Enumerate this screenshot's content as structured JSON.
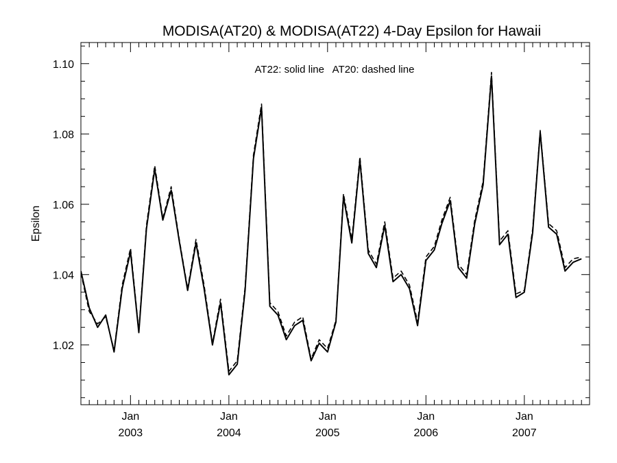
{
  "chart_data": {
    "type": "line",
    "title": "MODISA(AT20) & MODISA(AT22) 4-Day Epsilon for Hawaii",
    "annotation": "AT22: solid line   AT20: dashed line",
    "xlabel": "",
    "ylabel": "Epsilon",
    "xlim": [
      "2002-07-01",
      "2007-08-31"
    ],
    "ylim": [
      1.003,
      1.106
    ],
    "y_ticks": [
      1.02,
      1.04,
      1.06,
      1.08,
      1.1
    ],
    "y_tick_labels": [
      "1.02",
      "1.04",
      "1.06",
      "1.08",
      "1.10"
    ],
    "x_major_ticks": [
      {
        "date": "2003-01-01",
        "month": "Jan",
        "year": "2003"
      },
      {
        "date": "2004-01-01",
        "month": "Jan",
        "year": "2004"
      },
      {
        "date": "2005-01-01",
        "month": "Jan",
        "year": "2005"
      },
      {
        "date": "2006-01-01",
        "month": "Jan",
        "year": "2006"
      },
      {
        "date": "2007-01-01",
        "month": "Jan",
        "year": "2007"
      }
    ],
    "grid": false,
    "x": [
      "2002-07-01",
      "2002-08-01",
      "2002-09-01",
      "2002-10-01",
      "2002-11-01",
      "2002-12-01",
      "2003-01-01",
      "2003-02-01",
      "2003-03-01",
      "2003-04-01",
      "2003-05-01",
      "2003-06-01",
      "2003-07-01",
      "2003-08-01",
      "2003-09-01",
      "2003-10-01",
      "2003-11-01",
      "2003-12-01",
      "2004-01-01",
      "2004-02-01",
      "2004-03-01",
      "2004-04-01",
      "2004-05-01",
      "2004-06-01",
      "2004-07-01",
      "2004-08-01",
      "2004-09-01",
      "2004-10-01",
      "2004-11-01",
      "2004-12-01",
      "2005-01-01",
      "2005-02-01",
      "2005-03-01",
      "2005-04-01",
      "2005-05-01",
      "2005-06-01",
      "2005-07-01",
      "2005-08-01",
      "2005-09-01",
      "2005-10-01",
      "2005-11-01",
      "2005-12-01",
      "2006-01-01",
      "2006-02-01",
      "2006-03-01",
      "2006-04-01",
      "2006-05-01",
      "2006-06-01",
      "2006-07-01",
      "2006-08-01",
      "2006-09-01",
      "2006-10-01",
      "2006-11-01",
      "2006-12-01",
      "2007-01-01",
      "2007-02-01",
      "2007-03-01",
      "2007-04-01",
      "2007-05-01",
      "2007-06-01",
      "2007-07-01",
      "2007-08-01"
    ],
    "series": [
      {
        "name": "AT22",
        "style": "solid",
        "color": "#000000",
        "values": [
          1.041,
          1.0305,
          1.025,
          1.0285,
          1.018,
          1.036,
          1.0465,
          1.0235,
          1.053,
          1.07,
          1.0555,
          1.064,
          1.0495,
          1.0355,
          1.049,
          1.036,
          1.02,
          1.032,
          1.0115,
          1.0145,
          1.0355,
          1.073,
          1.0875,
          1.031,
          1.0285,
          1.0215,
          1.0255,
          1.027,
          1.0155,
          1.0205,
          1.018,
          1.0265,
          1.062,
          1.049,
          1.0725,
          1.046,
          1.042,
          1.054,
          1.038,
          1.04,
          1.036,
          1.0255,
          1.044,
          1.047,
          1.0545,
          1.061,
          1.042,
          1.039,
          1.0545,
          1.0655,
          1.0965,
          1.0485,
          1.0515,
          1.0335,
          1.035,
          1.052,
          1.0805,
          1.0535,
          1.0515,
          1.041,
          1.0435,
          1.0445
        ]
      },
      {
        "name": "AT20",
        "style": "dashed",
        "color": "#000000",
        "values": [
          1.0405,
          1.0295,
          1.026,
          1.028,
          1.0185,
          1.037,
          1.0475,
          1.024,
          1.054,
          1.071,
          1.056,
          1.065,
          1.05,
          1.036,
          1.05,
          1.037,
          1.0205,
          1.033,
          1.0125,
          1.0155,
          1.0365,
          1.074,
          1.0885,
          1.032,
          1.0295,
          1.0225,
          1.0265,
          1.028,
          1.016,
          1.0215,
          1.019,
          1.027,
          1.063,
          1.05,
          1.0735,
          1.047,
          1.043,
          1.055,
          1.039,
          1.041,
          1.037,
          1.0265,
          1.045,
          1.048,
          1.0555,
          1.062,
          1.043,
          1.04,
          1.0555,
          1.0665,
          1.0975,
          1.0495,
          1.0525,
          1.0345,
          1.0355,
          1.053,
          1.081,
          1.0545,
          1.0525,
          1.042,
          1.0445,
          1.045
        ]
      }
    ]
  }
}
